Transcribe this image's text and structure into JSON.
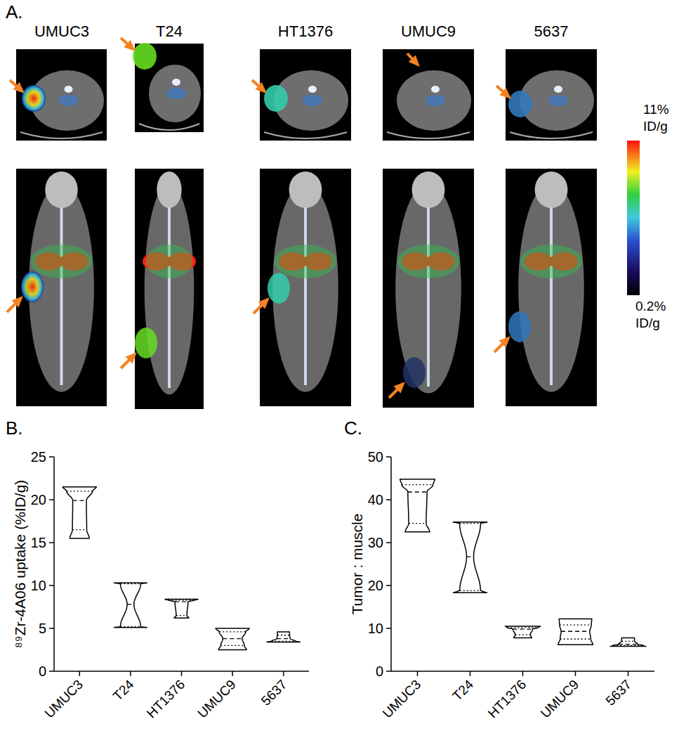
{
  "panel_a": {
    "title": "A.",
    "cell_lines": [
      "UMUC3",
      "T24",
      "HT1376",
      "UMUC9",
      "5637"
    ],
    "colorbar": {
      "range": [
        0.2,
        11
      ],
      "ticks": [
        {
          "value": 11,
          "label": "11% ID/g"
        },
        {
          "value": 0.2,
          "label": "0.2% ID/g"
        }
      ]
    }
  },
  "chart_data": [
    {
      "type": "violin",
      "title": "B.",
      "y_label": "⁸⁹Zr-4A06 uptake (%ID/g)",
      "categories": [
        "UMUC3",
        "T24",
        "HT1376",
        "UMUC9",
        "5637"
      ],
      "stats": {
        "min": [
          15.5,
          5.1,
          6.2,
          2.5,
          3.4
        ],
        "q1": [
          16.5,
          5.2,
          6.5,
          3.0,
          3.5
        ],
        "median": [
          19.9,
          7.8,
          8.1,
          3.8,
          3.8
        ],
        "q3": [
          21.0,
          10.2,
          8.3,
          4.6,
          4.2
        ],
        "max": [
          21.5,
          10.3,
          8.4,
          5.0,
          4.6
        ]
      },
      "ylim": [
        0,
        25
      ],
      "yticks": [
        0,
        5,
        10,
        15,
        20,
        25
      ],
      "grid": false
    },
    {
      "type": "violin",
      "title": "C.",
      "y_label": "Tumor : muscle",
      "categories": [
        "UMUC3",
        "T24",
        "HT1376",
        "UMUC9",
        "5637"
      ],
      "stats": {
        "min": [
          32.5,
          18.3,
          7.8,
          6.2,
          5.8
        ],
        "q1": [
          34.5,
          18.8,
          8.5,
          7.5,
          6.0
        ],
        "median": [
          41.8,
          26.7,
          9.8,
          9.3,
          6.3
        ],
        "q3": [
          43.5,
          34.5,
          10.2,
          10.8,
          7.0
        ],
        "max": [
          44.8,
          34.8,
          10.5,
          12.2,
          7.8
        ]
      },
      "ylim": [
        0,
        50
      ],
      "yticks": [
        0,
        10,
        20,
        30,
        40,
        50
      ],
      "grid": false
    }
  ]
}
